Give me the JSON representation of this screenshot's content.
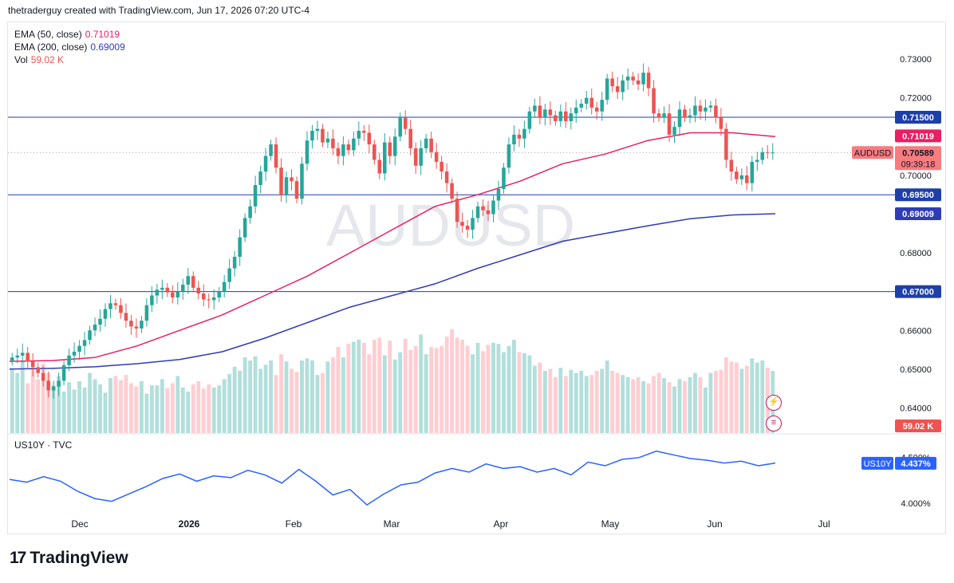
{
  "header": {
    "attribution": "thetraderguy created with TradingView.com, Jun 17, 2026 07:20 UTC-4"
  },
  "legend": {
    "ema50_label": "EMA (50, close)",
    "ema50_value": "0.71019",
    "ema200_label": "EMA (200, close)",
    "ema200_value": "0.69009",
    "vol_label": "Vol",
    "vol_value": "59.02 K"
  },
  "watermark": "AUDUSD",
  "colors": {
    "up": "#26a69a",
    "down": "#ef5350",
    "up_vol": "#b2dfdb",
    "down_vol": "#ffcdd2",
    "ema50": "#e91e63",
    "ema200": "#2e3cb5",
    "hline": "#1e3fa8",
    "us10y": "#2962ff",
    "price_tag": "#f77c80",
    "ema50_tag": "#e91e63",
    "ema200_tag": "#2e3cb5",
    "level_tag": "#1e3fa8",
    "us10y_tag": "#2962ff",
    "vol_tag": "#ef5350"
  },
  "chart_data": {
    "type": "candlestick",
    "symbol": "AUDUSD",
    "y_ticks": [
      "0.73000",
      "0.72000",
      "0.70000",
      "0.68000",
      "0.66000",
      "0.65000",
      "0.64000"
    ],
    "ylim": [
      0.6335,
      0.7395
    ],
    "x_ticks": [
      "Dec",
      "2026",
      "Feb",
      "Mar",
      "Apr",
      "May",
      "Jun",
      "Jul"
    ],
    "horizontal_levels": [
      0.715,
      0.695,
      0.67
    ],
    "level_labels": [
      "0.71500",
      "0.69500",
      "0.67000"
    ],
    "last_price": {
      "label": "AUDUSD",
      "value": "0.70589",
      "countdown": "09:39:18",
      "y": 0.70589
    },
    "ema50_tag": {
      "value": "0.71019",
      "y": 0.71019
    },
    "ema200_tag": {
      "value": "0.69009",
      "y": 0.69009
    },
    "volume_tag": "59.02 K",
    "closes": [
      0.653,
      0.6535,
      0.6542,
      0.652,
      0.6505,
      0.649,
      0.647,
      0.6445,
      0.6455,
      0.647,
      0.651,
      0.6535,
      0.6545,
      0.656,
      0.6575,
      0.66,
      0.6615,
      0.663,
      0.6655,
      0.667,
      0.6665,
      0.6645,
      0.6625,
      0.661,
      0.6605,
      0.6625,
      0.6665,
      0.669,
      0.6705,
      0.671,
      0.6698,
      0.6685,
      0.67,
      0.6718,
      0.674,
      0.671,
      0.6695,
      0.668,
      0.6678,
      0.6685,
      0.67,
      0.6725,
      0.676,
      0.679,
      0.684,
      0.689,
      0.692,
      0.6975,
      0.701,
      0.705,
      0.708,
      0.702,
      0.695,
      0.6995,
      0.6985,
      0.694,
      0.703,
      0.709,
      0.7115,
      0.712,
      0.7085,
      0.7095,
      0.707,
      0.705,
      0.708,
      0.7065,
      0.7095,
      0.7115,
      0.711,
      0.708,
      0.704,
      0.7005,
      0.7085,
      0.705,
      0.71,
      0.715,
      0.712,
      0.707,
      0.7025,
      0.707,
      0.7095,
      0.706,
      0.7035,
      0.701,
      0.698,
      0.694,
      0.688,
      0.687,
      0.686,
      0.689,
      0.692,
      0.691,
      0.69,
      0.6935,
      0.6965,
      0.702,
      0.708,
      0.7105,
      0.7095,
      0.712,
      0.7165,
      0.718,
      0.715,
      0.717,
      0.7155,
      0.714,
      0.7165,
      0.714,
      0.716,
      0.7175,
      0.7185,
      0.72,
      0.7175,
      0.7165,
      0.7195,
      0.725,
      0.723,
      0.7215,
      0.7245,
      0.7255,
      0.7245,
      0.7235,
      0.7265,
      0.7225,
      0.716,
      0.715,
      0.716,
      0.7105,
      0.7125,
      0.717,
      0.715,
      0.7155,
      0.718,
      0.7165,
      0.7175,
      0.718,
      0.715,
      0.712,
      0.704,
      0.701,
      0.699,
      0.7,
      0.698,
      0.7035,
      0.704,
      0.706,
      0.7058,
      0.7059
    ],
    "series": [
      {
        "name": "EMA (50, close)",
        "values": [
          0.652,
          0.6522,
          0.653,
          0.656,
          0.66,
          0.664,
          0.669,
          0.674,
          0.68,
          0.686,
          0.692,
          0.695,
          0.6985,
          0.703,
          0.7055,
          0.709,
          0.711,
          0.711,
          0.71
        ]
      },
      {
        "name": "EMA (200, close)",
        "values": [
          0.65,
          0.6502,
          0.6506,
          0.6514,
          0.6525,
          0.6545,
          0.658,
          0.662,
          0.666,
          0.669,
          0.672,
          0.676,
          0.6795,
          0.683,
          0.685,
          0.687,
          0.6888,
          0.6898,
          0.6901
        ]
      }
    ],
    "volume": [
      0.62,
      0.58,
      0.7,
      0.48,
      0.62,
      0.52,
      0.67,
      0.58,
      0.46,
      0.55,
      0.4,
      0.49,
      0.42,
      0.5,
      0.44,
      0.58,
      0.52,
      0.47,
      0.39,
      0.53,
      0.55,
      0.51,
      0.56,
      0.48,
      0.45,
      0.5,
      0.38,
      0.46,
      0.46,
      0.52,
      0.43,
      0.48,
      0.55,
      0.44,
      0.4,
      0.47,
      0.5,
      0.43,
      0.47,
      0.44,
      0.46,
      0.52,
      0.57,
      0.64,
      0.6,
      0.73,
      0.7,
      0.74,
      0.62,
      0.66,
      0.7,
      0.56,
      0.76,
      0.69,
      0.62,
      0.59,
      0.7,
      0.72,
      0.7,
      0.56,
      0.58,
      0.69,
      0.73,
      0.83,
      0.73,
      0.86,
      0.88,
      0.9,
      0.87,
      0.76,
      0.9,
      0.92,
      0.75,
      0.89,
      0.71,
      0.78,
      0.91,
      0.8,
      0.84,
      0.95,
      0.76,
      0.83,
      0.82,
      0.84,
      0.93,
      1.0,
      0.92,
      0.9,
      0.84,
      0.76,
      0.87,
      0.79,
      0.85,
      0.87,
      0.86,
      0.78,
      0.84,
      0.9,
      0.78,
      0.77,
      0.75,
      0.65,
      0.68,
      0.6,
      0.62,
      0.54,
      0.63,
      0.55,
      0.61,
      0.58,
      0.6,
      0.55,
      0.56,
      0.6,
      0.62,
      0.7,
      0.6,
      0.58,
      0.56,
      0.54,
      0.52,
      0.54,
      0.5,
      0.48,
      0.55,
      0.58,
      0.53,
      0.49,
      0.45,
      0.52,
      0.5,
      0.54,
      0.58,
      0.54,
      0.44,
      0.58,
      0.6,
      0.61,
      0.73,
      0.69,
      0.68,
      0.62,
      0.65,
      0.72,
      0.68,
      0.7,
      0.63,
      0.6
    ],
    "us10y": {
      "label": "US10Y · TVC",
      "value": "4.437%",
      "tag": "US10Y",
      "y_ticks": [
        "4.500%",
        "4.000%"
      ],
      "ylim": [
        3.92,
        4.62
      ],
      "values": [
        4.26,
        4.23,
        4.29,
        4.24,
        4.13,
        4.05,
        4.02,
        4.1,
        4.18,
        4.27,
        4.32,
        4.24,
        4.3,
        4.28,
        4.36,
        4.31,
        4.22,
        4.37,
        4.24,
        4.09,
        4.15,
        3.98,
        4.1,
        4.2,
        4.23,
        4.33,
        4.38,
        4.34,
        4.43,
        4.38,
        4.4,
        4.34,
        4.38,
        4.31,
        4.45,
        4.41,
        4.48,
        4.5,
        4.57,
        4.53,
        4.49,
        4.47,
        4.44,
        4.46,
        4.41,
        4.44
      ]
    }
  }
}
